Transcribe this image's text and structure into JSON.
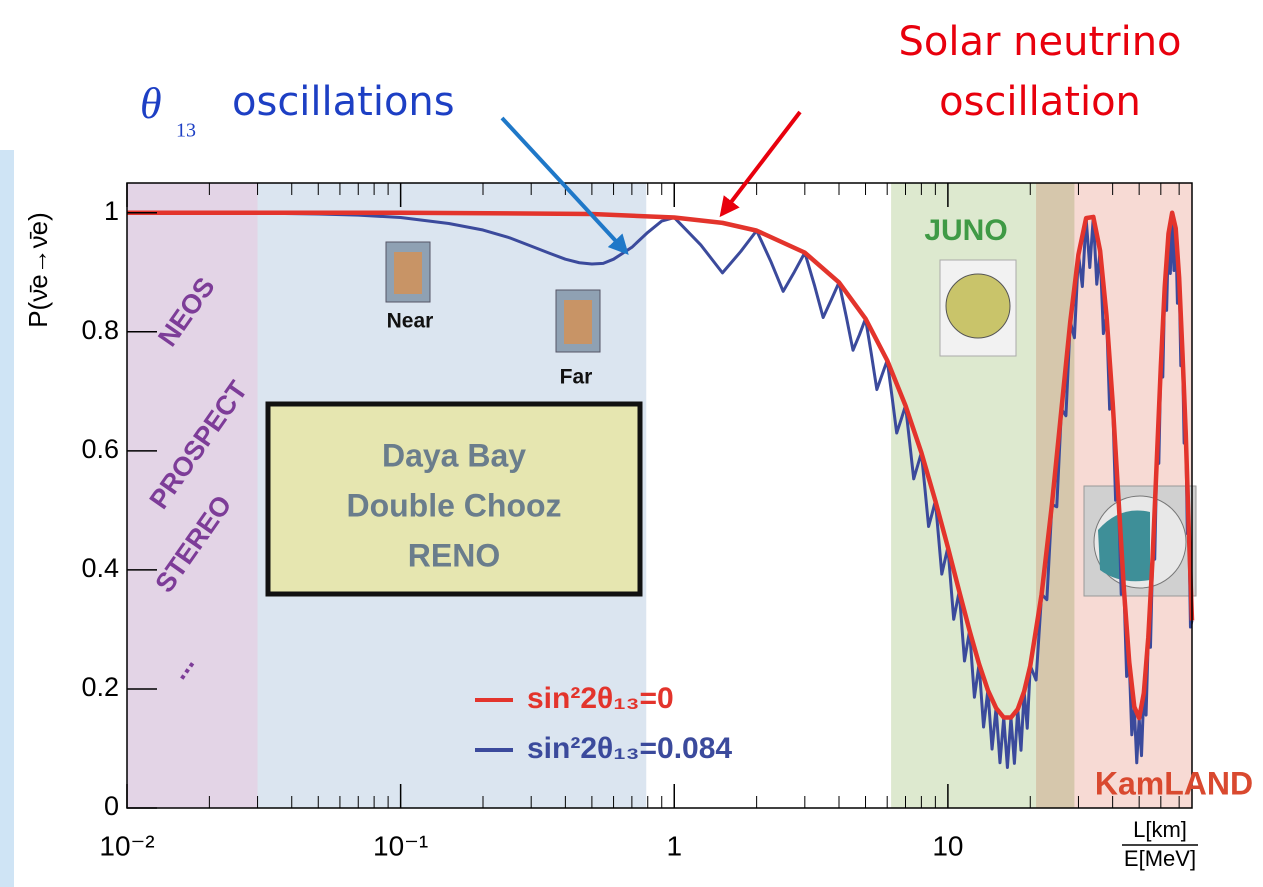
{
  "chart_data": {
    "type": "line",
    "annotations": {
      "solar": [
        "Solar neutrino",
        "oscillation"
      ],
      "theta": {
        "symbol": "θ",
        "subscript": "13",
        "text": "oscillations"
      },
      "near": "Near",
      "far": "Far"
    },
    "ylabel": "P(ν̄e→ν̄e)",
    "xlabel": {
      "numerator": "L[km]",
      "denominator": "E[MeV]"
    },
    "log_x": true,
    "xlim": [
      0.01,
      78
    ],
    "ylim": [
      0,
      1.05
    ],
    "xticks": [
      {
        "value": 0.01,
        "label": "10⁻²"
      },
      {
        "value": 0.1,
        "label": "10⁻¹"
      },
      1,
      10
    ],
    "xminorticks": [
      0.02,
      0.03,
      0.04,
      0.05,
      0.06,
      0.07,
      0.08,
      0.09,
      0.2,
      0.3,
      0.4,
      0.5,
      0.6,
      0.7,
      0.8,
      0.9,
      2,
      3,
      4,
      5,
      6,
      7,
      8,
      9,
      20,
      30,
      40,
      50,
      60,
      70
    ],
    "yticks": [
      0,
      0.2,
      0.4,
      0.6,
      0.8,
      1
    ],
    "legend": "lower center",
    "regions": [
      {
        "xlim": [
          0.01,
          0.03
        ],
        "color": "#e3d4e6",
        "labels": [
          "NEOS",
          "PROSPECT",
          "STEREO",
          "..."
        ],
        "label_color": "#7d3c98"
      },
      {
        "xlim": [
          0.03,
          0.79
        ],
        "color": "#dbe5f0",
        "labels": [
          "Daya Bay",
          "Double Chooz",
          "RENO"
        ],
        "label_color": "#6a7d8c"
      },
      {
        "xlim": [
          6.2,
          29
        ],
        "color": "#dde9cf",
        "labels": [
          "JUNO"
        ],
        "label_color": "#3f9a45"
      },
      {
        "xlim": [
          21,
          78
        ],
        "color": "#f4cdc6",
        "labels": [
          "KamLAND"
        ],
        "label_color": "#d9492f"
      }
    ],
    "series": [
      {
        "name": "sin²2θ₁₃=0.084",
        "color": "#3b4a9c",
        "x": [
          0.035,
          0.05,
          0.07,
          0.1,
          0.15,
          0.2,
          0.25,
          0.3,
          0.35,
          0.4,
          0.45,
          0.5,
          0.55,
          0.6,
          0.7,
          0.8,
          0.9,
          1,
          1.25,
          1.5,
          1.75,
          2,
          2.25,
          2.5,
          2.75,
          3,
          3.25,
          3.5,
          3.75,
          4,
          4.25,
          4.5,
          4.75,
          5,
          5.25,
          5.5,
          5.75,
          6,
          6.25,
          6.5,
          6.75,
          7,
          7.25,
          7.5,
          7.75,
          8,
          8.25,
          8.5,
          8.75,
          9,
          9.25,
          9.5,
          9.75,
          10,
          10.5,
          11,
          11.5,
          12,
          12.5,
          13,
          13.5,
          14,
          14.5,
          15,
          15.5,
          16,
          16.5,
          17,
          17.5,
          18,
          18.5,
          19,
          19.5,
          20,
          21,
          22,
          23,
          24,
          25,
          26,
          27,
          28,
          29,
          30,
          31,
          32,
          33,
          34,
          35,
          36,
          37,
          38,
          39,
          40,
          41,
          42,
          43,
          44,
          45,
          46,
          47,
          48,
          49,
          50,
          51,
          52,
          53,
          54,
          55,
          56,
          57,
          58,
          59,
          60,
          61,
          62,
          63,
          64,
          65,
          66,
          67,
          68,
          69,
          70,
          71,
          72,
          73,
          74,
          75,
          76,
          77,
          78
        ],
        "values": [
          0.999,
          0.998,
          0.996,
          0.992,
          0.982,
          0.971,
          0.958,
          0.944,
          0.932,
          0.922,
          0.916,
          0.914,
          0.915,
          0.922,
          0.942,
          0.967,
          0.986,
          0.992,
          0.946,
          0.899,
          0.935,
          0.97,
          0.919,
          0.868,
          0.901,
          0.933,
          0.879,
          0.824,
          0.854,
          0.883,
          0.826,
          0.769,
          0.795,
          0.822,
          0.763,
          0.703,
          0.728,
          0.752,
          0.691,
          0.63,
          0.653,
          0.676,
          0.614,
          0.553,
          0.575,
          0.597,
          0.535,
          0.473,
          0.494,
          0.516,
          0.454,
          0.393,
          0.416,
          0.438,
          0.317,
          0.364,
          0.247,
          0.298,
          0.186,
          0.242,
          0.136,
          0.198,
          0.099,
          0.168,
          0.076,
          0.152,
          0.068,
          0.152,
          0.075,
          0.166,
          0.097,
          0.196,
          0.134,
          0.239,
          0.215,
          0.359,
          0.35,
          0.51,
          0.506,
          0.67,
          0.659,
          0.817,
          0.79,
          0.93,
          0.876,
          0.991,
          0.908,
          0.993,
          0.88,
          0.936,
          0.797,
          0.827,
          0.67,
          0.682,
          0.517,
          0.521,
          0.359,
          0.366,
          0.221,
          0.245,
          0.123,
          0.17,
          0.076,
          0.151,
          0.088,
          0.193,
          0.156,
          0.287,
          0.27,
          0.421,
          0.418,
          0.584,
          0.579,
          0.742,
          0.724,
          0.875,
          0.836,
          0.965,
          0.898,
          1.0,
          0.903,
          0.974,
          0.848,
          0.891,
          0.743,
          0.764,
          0.613,
          0.63,
          0.461,
          0.461,
          0.304,
          0.315
        ]
      },
      {
        "name": "sin²2θ₁₃=0",
        "color": "#e3342c",
        "x": [
          0.01,
          0.1,
          0.5,
          1,
          1.5,
          2,
          3,
          4,
          5,
          6,
          7,
          8,
          9,
          10,
          11,
          12,
          13,
          14,
          15,
          16,
          17,
          18,
          19,
          20,
          22,
          24,
          26,
          28,
          30,
          32,
          34,
          36,
          38,
          40,
          42,
          44,
          46,
          48,
          50,
          52,
          54,
          56,
          58,
          60,
          62,
          64,
          66,
          68,
          70,
          72,
          74,
          76,
          78
        ],
        "values": [
          1.0,
          1.0,
          0.998,
          0.992,
          0.983,
          0.97,
          0.933,
          0.883,
          0.822,
          0.752,
          0.676,
          0.597,
          0.516,
          0.438,
          0.364,
          0.298,
          0.242,
          0.198,
          0.168,
          0.152,
          0.152,
          0.166,
          0.196,
          0.239,
          0.359,
          0.51,
          0.67,
          0.817,
          0.93,
          0.991,
          0.993,
          0.936,
          0.827,
          0.682,
          0.521,
          0.366,
          0.245,
          0.17,
          0.151,
          0.193,
          0.287,
          0.421,
          0.584,
          0.742,
          0.875,
          0.965,
          1.0,
          0.974,
          0.891,
          0.764,
          0.63,
          0.461,
          0.315
        ]
      }
    ]
  }
}
